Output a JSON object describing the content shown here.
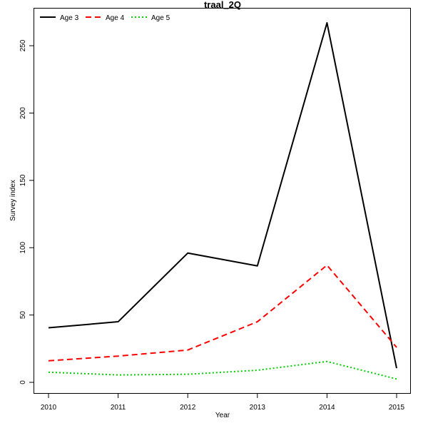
{
  "chart_data": {
    "type": "line",
    "title": "traal_2Q",
    "xlabel": "Year",
    "ylabel": "Survey index",
    "x": [
      2010,
      2011,
      2012,
      2013,
      2014,
      2015
    ],
    "xlim": [
      2010,
      2015
    ],
    "ylim": [
      0,
      267
    ],
    "yticks": [
      0,
      50,
      100,
      150,
      200,
      250
    ],
    "grid": false,
    "legend_position": "top-left",
    "series": [
      {
        "name": "Age 3",
        "color": "#000000",
        "dash": "solid",
        "values": [
          40.5,
          45.0,
          96.0,
          86.5,
          267.0,
          10.5
        ]
      },
      {
        "name": "Age 4",
        "color": "#ff0000",
        "dash": "dashed",
        "values": [
          16.0,
          19.5,
          24.0,
          45.0,
          87.0,
          26.0
        ]
      },
      {
        "name": "Age 5",
        "color": "#00cd00",
        "dash": "dotted",
        "values": [
          7.5,
          5.5,
          6.0,
          9.0,
          15.5,
          2.5
        ]
      }
    ]
  }
}
